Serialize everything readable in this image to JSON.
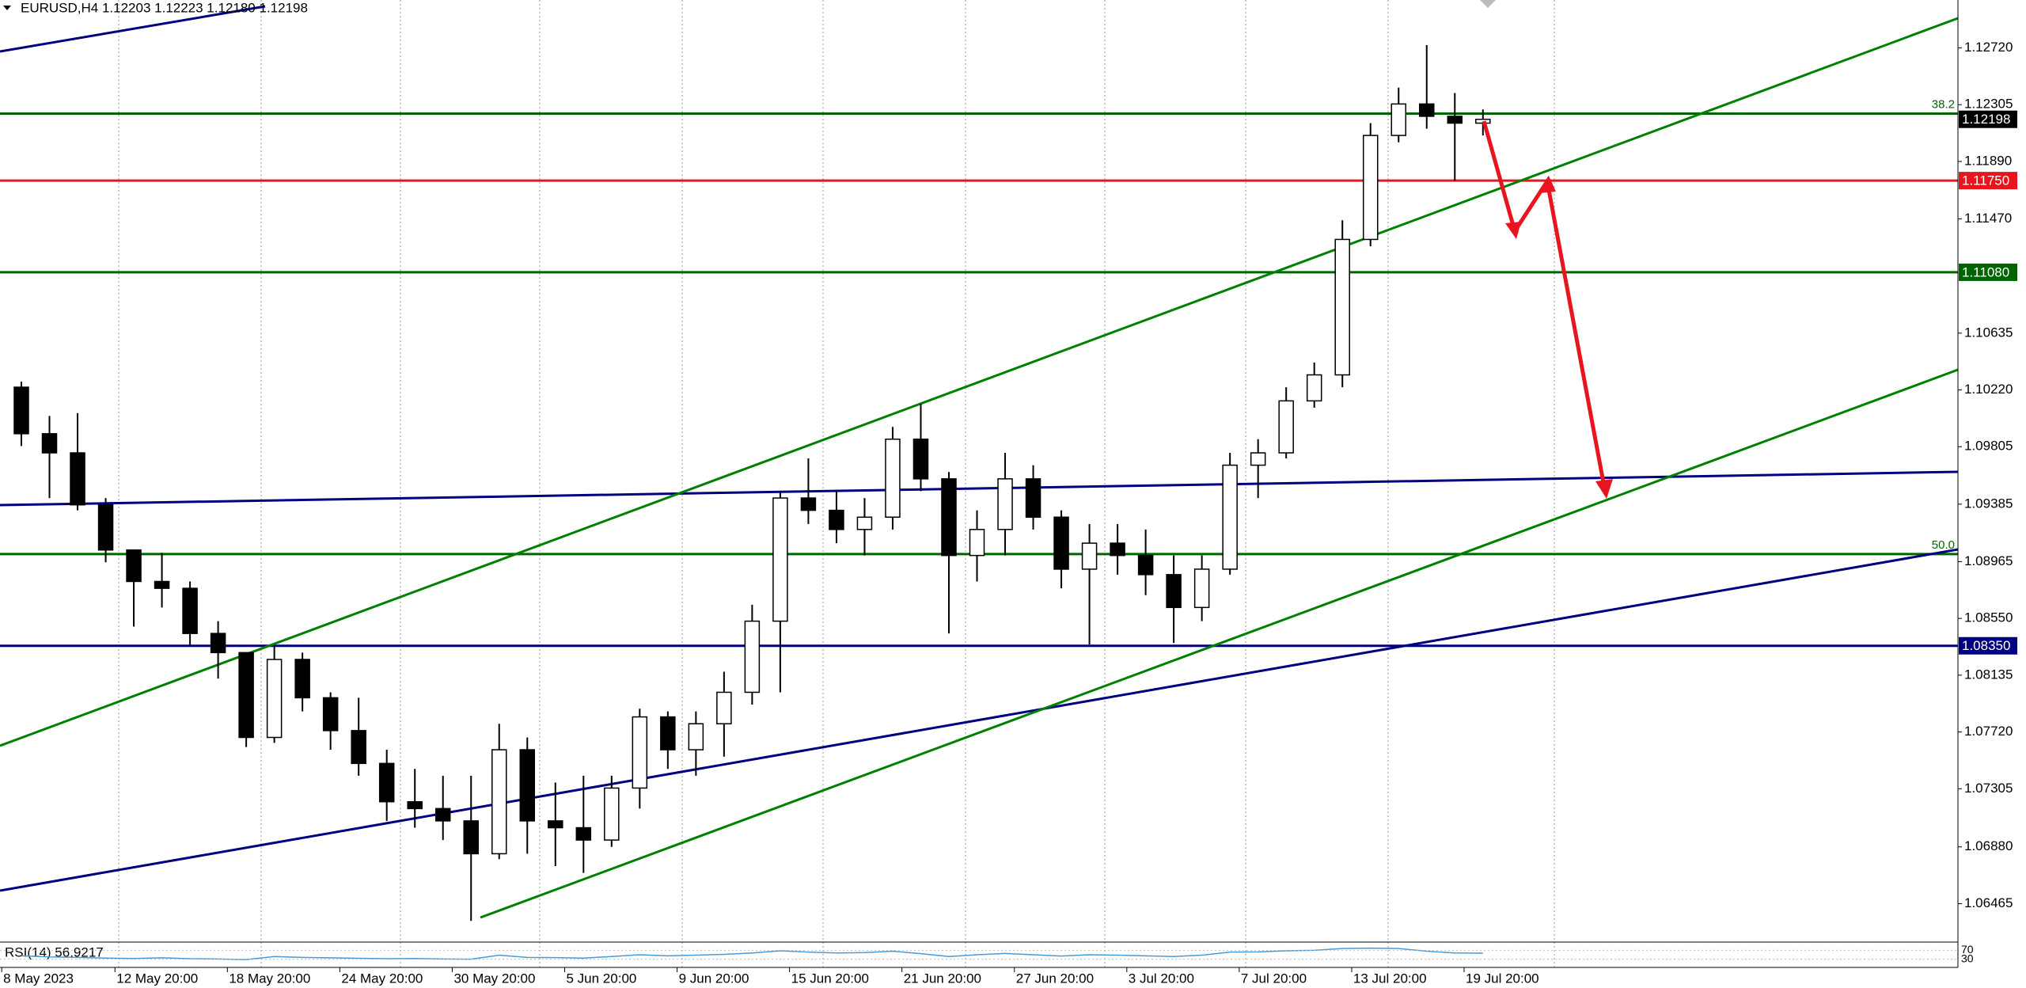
{
  "chart_data": {
    "type": "candlestick",
    "title": "EURUSD,H4  1.12203 1.12223 1.12180 1.12198",
    "x": [
      1.5,
      2.5,
      3.5,
      4.5,
      5.5,
      6.5,
      7.5,
      8.5,
      9.5,
      10.5,
      11.5,
      12.5,
      13.5,
      14.5,
      15.5,
      16.5,
      17.5,
      18.5,
      19.5,
      20.5,
      21.5,
      22.5,
      23.5,
      24.5,
      25.5,
      26.5,
      27.5,
      28.5,
      29.5,
      30.5,
      31.5,
      32.5,
      33.5,
      34.5,
      35.5,
      36.5,
      37.5,
      38.5,
      39.5,
      40.5,
      41.5,
      42.5,
      43.5,
      44.5,
      45.5,
      46.5,
      47.5,
      48.5,
      49.5,
      50.5,
      51.5,
      52.5,
      53.5
    ],
    "open": [
      1.1024,
      1.099,
      1.0976,
      1.0938,
      1.0905,
      1.0882,
      1.0877,
      1.0844,
      1.083,
      1.0768,
      1.0825,
      1.0797,
      1.0773,
      1.0749,
      1.0721,
      1.0716,
      1.0707,
      1.0683,
      1.0759,
      1.0707,
      1.0702,
      1.0693,
      1.0731,
      1.0783,
      1.0759,
      1.0778,
      1.0801,
      1.0853,
      1.0943,
      1.0934,
      1.092,
      1.0929,
      1.0986,
      1.0957,
      1.0901,
      1.092,
      1.0957,
      1.0929,
      1.0891,
      1.091,
      1.0901,
      1.0887,
      1.0863,
      1.0891,
      1.0967,
      1.0976,
      1.1014,
      1.1033,
      1.1132,
      1.1208,
      1.1231,
      1.1222,
      1.1217
    ],
    "high": [
      1.1028,
      1.1003,
      1.1005,
      1.0943,
      1.0905,
      1.0903,
      1.0882,
      1.0853,
      1.083,
      1.0835,
      1.083,
      1.0801,
      1.0797,
      1.0759,
      1.0745,
      1.074,
      1.074,
      1.0778,
      1.0768,
      1.0735,
      1.074,
      1.074,
      1.0789,
      1.0787,
      1.0787,
      1.0816,
      1.0865,
      1.0948,
      1.0972,
      1.0948,
      1.0943,
      1.0995,
      1.1012,
      1.0962,
      1.0934,
      1.0976,
      1.0967,
      1.0934,
      1.0924,
      1.0924,
      1.092,
      1.0901,
      1.0901,
      1.0976,
      1.0986,
      1.1024,
      1.1042,
      1.1146,
      1.1217,
      1.1243,
      1.1274,
      1.1239,
      1.1227
    ],
    "low": [
      1.0981,
      1.0943,
      1.0934,
      1.0896,
      1.0849,
      1.0863,
      1.0835,
      1.0811,
      1.0761,
      1.0764,
      1.0787,
      1.0759,
      1.074,
      1.0707,
      1.0702,
      1.0693,
      1.0634,
      1.0679,
      1.0683,
      1.0674,
      1.0669,
      1.0688,
      1.0716,
      1.0745,
      1.074,
      1.0754,
      1.0792,
      1.0801,
      1.0924,
      1.091,
      1.0901,
      1.092,
      1.0948,
      1.0844,
      1.0882,
      1.0901,
      1.092,
      1.0877,
      1.0836,
      1.0887,
      1.0872,
      1.0837,
      1.0853,
      1.0887,
      1.0943,
      1.0972,
      1.1009,
      1.1024,
      1.1127,
      1.1203,
      1.1213,
      1.1175,
      1.1208
    ],
    "close": [
      1.099,
      1.0976,
      1.0938,
      1.0905,
      1.0882,
      1.0877,
      1.0844,
      1.083,
      1.0768,
      1.0825,
      1.0797,
      1.0773,
      1.0749,
      1.0721,
      1.0716,
      1.0707,
      1.0683,
      1.0759,
      1.0707,
      1.0702,
      1.0693,
      1.0731,
      1.0783,
      1.0759,
      1.0778,
      1.0801,
      1.0853,
      1.0943,
      1.0934,
      1.092,
      1.0929,
      1.0986,
      1.0957,
      1.0901,
      1.092,
      1.0957,
      1.0929,
      1.0891,
      1.091,
      1.0901,
      1.0887,
      1.0863,
      1.0891,
      1.0967,
      1.0976,
      1.1014,
      1.1033,
      1.1132,
      1.1208,
      1.1231,
      1.1222,
      1.1217,
      1.12198
    ],
    "xlim": [
      0.74,
      70.4
    ],
    "ylim": [
      1.0619,
      1.1307
    ],
    "yticks": [
      {
        "value": 1.1272,
        "label": "1.12720"
      },
      {
        "value": 1.12305,
        "label": "1.12305"
      },
      {
        "value": 1.1189,
        "label": "1.11890"
      },
      {
        "value": 1.1147,
        "label": "1.11470"
      },
      {
        "value": 1.10635,
        "label": "1.10635"
      },
      {
        "value": 1.1022,
        "label": "1.10220"
      },
      {
        "value": 1.09805,
        "label": "1.09805"
      },
      {
        "value": 1.09385,
        "label": "1.09385"
      },
      {
        "value": 1.08965,
        "label": "1.08965"
      },
      {
        "value": 1.0855,
        "label": "1.08550"
      },
      {
        "value": 1.08135,
        "label": "1.08135"
      },
      {
        "value": 1.0772,
        "label": "1.07720"
      },
      {
        "value": 1.07305,
        "label": "1.07305"
      },
      {
        "value": 1.0688,
        "label": "1.06880"
      },
      {
        "value": 1.06465,
        "label": "1.06465"
      }
    ],
    "xticks": [
      {
        "value": 0.8,
        "label": "8 May 2023"
      },
      {
        "value": 4.83,
        "label": "12 May 20:00"
      },
      {
        "value": 8.83,
        "label": "18 May 20:00"
      },
      {
        "value": 12.83,
        "label": "24 May 20:00"
      },
      {
        "value": 16.83,
        "label": "30 May 20:00"
      },
      {
        "value": 20.83,
        "label": "5 Jun 20:00"
      },
      {
        "value": 24.83,
        "label": "9 Jun 20:00"
      },
      {
        "value": 28.83,
        "label": "15 Jun 20:00"
      },
      {
        "value": 32.83,
        "label": "21 Jun 20:00"
      },
      {
        "value": 36.83,
        "label": "27 Jun 20:00"
      },
      {
        "value": 40.83,
        "label": "3 Jul 20:00"
      },
      {
        "value": 44.83,
        "label": "7 Jul 20:00"
      },
      {
        "value": 48.83,
        "label": "13 Jul 20:00"
      },
      {
        "value": 52.83,
        "label": "19 Jul 20:00"
      }
    ],
    "price_tags": [
      {
        "value": 1.12198,
        "label": "1.12198",
        "color": "#000000",
        "line": false
      },
      {
        "value": 1.1175,
        "label": "1.11750",
        "color": "#e8141e",
        "line": true
      },
      {
        "value": 1.1108,
        "label": "1.11080",
        "color": "#006400",
        "line": true
      },
      {
        "value": 1.0835,
        "label": "1.08350",
        "color": "#000080",
        "line": true
      }
    ],
    "fib_levels": [
      {
        "value": 1.1224,
        "label": "38.2",
        "color": "#006400"
      },
      {
        "value": 1.0902,
        "label": "50.0",
        "color": "#006400"
      }
    ],
    "rsi": {
      "label": "RSI(14) 56.9217",
      "color": "#4a9ad6",
      "ylim": [
        0,
        100
      ],
      "yticks": [
        70,
        30
      ],
      "values": [
        45,
        40,
        38,
        35,
        33,
        36,
        32,
        31,
        28,
        42,
        38,
        36,
        34,
        32,
        33,
        31,
        30,
        48,
        38,
        37,
        35,
        42,
        50,
        45,
        48,
        52,
        58,
        68,
        62,
        58,
        60,
        66,
        55,
        42,
        50,
        56,
        50,
        44,
        50,
        48,
        45,
        42,
        48,
        62,
        63,
        68,
        70,
        78,
        80,
        78,
        66,
        58,
        57
      ]
    }
  }
}
